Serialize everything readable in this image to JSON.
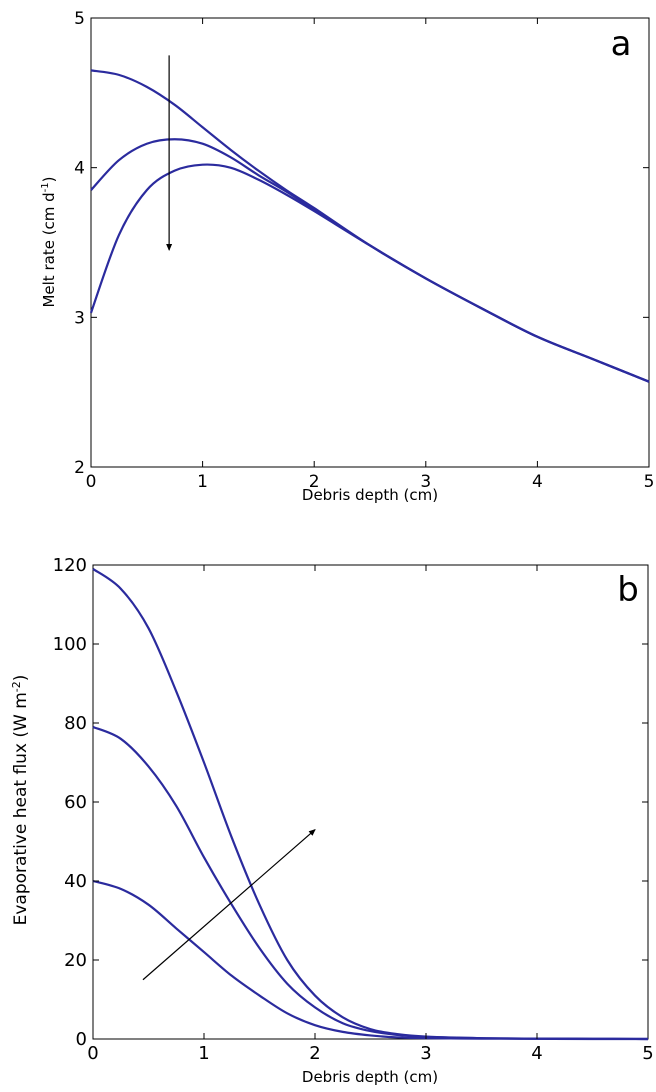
{
  "chart_data": [
    {
      "type": "line",
      "panel_label": "a",
      "xlabel": "Debris depth (cm)",
      "ylabel": "Melt rate (cm d",
      "ylabel_sup": "-1",
      "ylabel_end": ")",
      "xlim": [
        0,
        5
      ],
      "ylim": [
        2,
        5
      ],
      "xticks": [
        0,
        1,
        2,
        3,
        4,
        5
      ],
      "yticks": [
        2,
        3,
        4,
        5
      ],
      "grid": false,
      "line_color": "#2b2b9e",
      "arrow": {
        "from": [
          0.7,
          4.75
        ],
        "to": [
          0.7,
          3.45
        ]
      },
      "series": [
        {
          "x": [
            0,
            0.25,
            0.5,
            0.75,
            1.0,
            1.25,
            1.5,
            1.75,
            2.0,
            2.5,
            3.0,
            3.5,
            4.0,
            4.5,
            5.0
          ],
          "values": [
            4.65,
            4.62,
            4.54,
            4.42,
            4.27,
            4.12,
            3.98,
            3.85,
            3.73,
            3.48,
            3.26,
            3.06,
            2.87,
            2.72,
            2.57
          ]
        },
        {
          "x": [
            0,
            0.25,
            0.5,
            0.75,
            1.0,
            1.25,
            1.5,
            1.75,
            2.0,
            2.5,
            3.0,
            3.5,
            4.0,
            4.5,
            5.0
          ],
          "values": [
            3.85,
            4.05,
            4.16,
            4.19,
            4.16,
            4.07,
            3.95,
            3.84,
            3.72,
            3.48,
            3.26,
            3.06,
            2.87,
            2.72,
            2.57
          ]
        },
        {
          "x": [
            0,
            0.25,
            0.5,
            0.75,
            1.0,
            1.25,
            1.5,
            1.75,
            2.0,
            2.5,
            3.0,
            3.5,
            4.0,
            4.5,
            5.0
          ],
          "values": [
            3.03,
            3.55,
            3.85,
            3.98,
            4.02,
            4.0,
            3.92,
            3.82,
            3.71,
            3.48,
            3.26,
            3.06,
            2.87,
            2.72,
            2.57
          ]
        }
      ]
    },
    {
      "type": "line",
      "panel_label": "b",
      "xlabel": "Debris depth (cm)",
      "ylabel": "Evaporative heat flux (W m",
      "ylabel_sup": "-2",
      "ylabel_end": ")",
      "xlim": [
        0,
        5
      ],
      "ylim": [
        0,
        120
      ],
      "xticks": [
        0,
        1,
        2,
        3,
        4,
        5
      ],
      "yticks": [
        0,
        20,
        40,
        60,
        80,
        100,
        120
      ],
      "grid": false,
      "line_color": "#2b2b9e",
      "arrow": {
        "from": [
          0.45,
          15
        ],
        "to": [
          2.0,
          53
        ]
      },
      "series": [
        {
          "x": [
            0,
            0.25,
            0.5,
            0.75,
            1.0,
            1.25,
            1.5,
            1.75,
            2.0,
            2.25,
            2.5,
            2.75,
            3.0,
            3.5,
            4.0,
            4.5,
            5.0
          ],
          "values": [
            119,
            114,
            104,
            88,
            70,
            51,
            34,
            20,
            11,
            5.5,
            2.5,
            1.2,
            0.6,
            0.2,
            0.1,
            0.05,
            0
          ]
        },
        {
          "x": [
            0,
            0.25,
            0.5,
            0.75,
            1.0,
            1.25,
            1.5,
            1.75,
            2.0,
            2.25,
            2.5,
            2.75,
            3.0,
            3.5,
            4.0,
            4.5,
            5.0
          ],
          "values": [
            79,
            76,
            69,
            59,
            46,
            34,
            23,
            14,
            8,
            4,
            2,
            1,
            0.5,
            0.2,
            0.1,
            0.05,
            0
          ]
        },
        {
          "x": [
            0,
            0.25,
            0.5,
            0.75,
            1.0,
            1.25,
            1.5,
            1.75,
            2.0,
            2.25,
            2.5,
            2.75,
            3.0,
            3.5,
            4.0,
            4.5,
            5.0
          ],
          "values": [
            40,
            38,
            34,
            28,
            22,
            16,
            11,
            6.5,
            3.5,
            1.8,
            0.9,
            0.4,
            0.2,
            0.1,
            0.05,
            0,
            0
          ]
        }
      ]
    }
  ]
}
